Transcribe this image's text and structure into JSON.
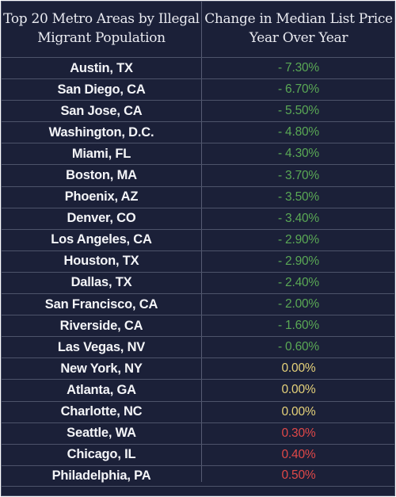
{
  "table": {
    "headers": {
      "metro_line1": "Top 20 Metro Areas by Illegal",
      "metro_line2": "Migrant Population",
      "change_line1": "Change in Median List Price",
      "change_line2": "Year Over Year"
    },
    "colors": {
      "background": "#1b2038",
      "decrease": "#5aa855",
      "flat": "#e6d27a",
      "increase": "#e04848"
    },
    "rows": [
      {
        "metro": "Austin, TX",
        "change": "- 7.30%",
        "trend": "neg"
      },
      {
        "metro": "San Diego, CA",
        "change": "- 6.70%",
        "trend": "neg"
      },
      {
        "metro": "San Jose, CA",
        "change": "- 5.50%",
        "trend": "neg"
      },
      {
        "metro": "Washington, D.C.",
        "change": "- 4.80%",
        "trend": "neg"
      },
      {
        "metro": "Miami, FL",
        "change": "- 4.30%",
        "trend": "neg"
      },
      {
        "metro": "Boston, MA",
        "change": "- 3.70%",
        "trend": "neg"
      },
      {
        "metro": "Phoenix, AZ",
        "change": "- 3.50%",
        "trend": "neg"
      },
      {
        "metro": "Denver, CO",
        "change": "- 3.40%",
        "trend": "neg"
      },
      {
        "metro": "Los Angeles, CA",
        "change": "- 2.90%",
        "trend": "neg"
      },
      {
        "metro": "Houston, TX",
        "change": "- 2.90%",
        "trend": "neg"
      },
      {
        "metro": "Dallas, TX",
        "change": "- 2.40%",
        "trend": "neg"
      },
      {
        "metro": "San Francisco, CA",
        "change": "- 2.00%",
        "trend": "neg"
      },
      {
        "metro": "Riverside, CA",
        "change": "- 1.60%",
        "trend": "neg"
      },
      {
        "metro": "Las Vegas, NV",
        "change": "- 0.60%",
        "trend": "neg"
      },
      {
        "metro": "New York, NY",
        "change": "0.00%",
        "trend": "zero"
      },
      {
        "metro": "Atlanta, GA",
        "change": "0.00%",
        "trend": "zero"
      },
      {
        "metro": "Charlotte, NC",
        "change": "0.00%",
        "trend": "zero"
      },
      {
        "metro": "Seattle, WA",
        "change": "0.30%",
        "trend": "pos"
      },
      {
        "metro": "Chicago, IL",
        "change": "0.40%",
        "trend": "pos"
      },
      {
        "metro": "Philadelphia, PA",
        "change": "0.50%",
        "trend": "pos"
      }
    ]
  }
}
